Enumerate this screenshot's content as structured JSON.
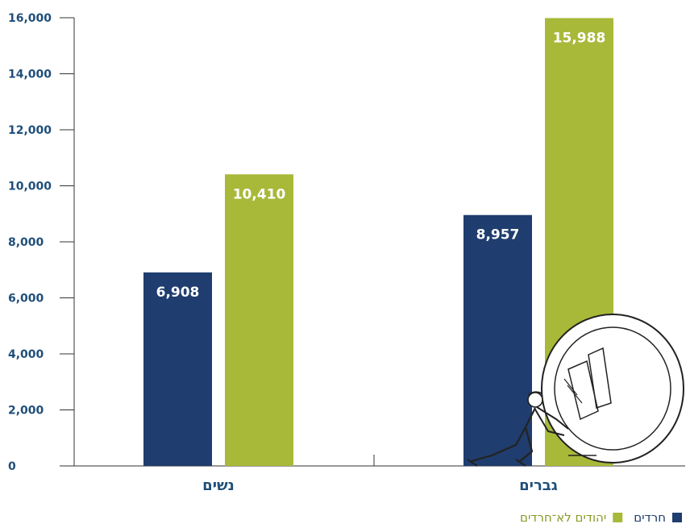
{
  "chart_data": {
    "type": "bar",
    "categories": [
      "נשים",
      "גברים"
    ],
    "series": [
      {
        "name": "חרדים",
        "color": "#1f3d6e",
        "values": [
          6908,
          8957
        ],
        "labels": [
          "6,908",
          "8,957"
        ]
      },
      {
        "name": "יהודים לא־חרדים",
        "color": "#a8b93a",
        "values": [
          10410,
          15988
        ],
        "labels": [
          "10,410",
          "15,988"
        ]
      }
    ],
    "yticks": [
      0,
      2000,
      4000,
      6000,
      8000,
      10000,
      12000,
      14000,
      16000
    ],
    "ytick_labels": [
      "0",
      "2,000",
      "4,000",
      "6,000",
      "8,000",
      "10,000",
      "12,000",
      "14,000",
      "16,000"
    ],
    "ylim": [
      0,
      16000
    ],
    "grid": false,
    "legend_position": "bottom-right"
  },
  "colors": {
    "axis_text": "#1f4f7a",
    "axis_line": "#333333"
  },
  "illustration": {
    "icon": "man-pushing-coin-icon"
  }
}
